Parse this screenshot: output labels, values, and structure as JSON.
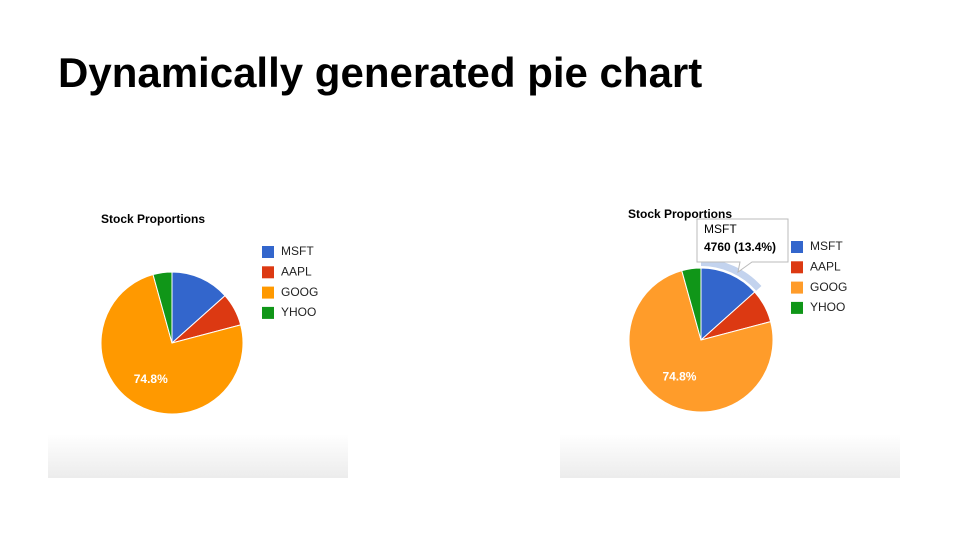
{
  "slide": {
    "title": "Dynamically generated pie chart"
  },
  "chart_data": [
    {
      "type": "pie",
      "title": "Stock Proportions",
      "categories": [
        "MSFT",
        "AAPL",
        "GOOG",
        "YHOO"
      ],
      "values": [
        13.4,
        7.5,
        74.8,
        4.3
      ],
      "value_labels": [
        null,
        null,
        "74.8%",
        null
      ],
      "colors": [
        "#3366cc",
        "#dc3912",
        "#ff9900",
        "#109618"
      ],
      "legend": "right"
    },
    {
      "type": "pie",
      "title": "Stock Proportions",
      "categories": [
        "MSFT",
        "AAPL",
        "GOOG",
        "YHOO"
      ],
      "values": [
        13.4,
        7.5,
        74.8,
        4.3
      ],
      "value_labels": [
        null,
        null,
        "74.8%",
        null
      ],
      "colors": [
        "#3366cc",
        "#dc3912",
        "#ff9c2a",
        "#109618"
      ],
      "legend": "right",
      "tooltip": {
        "title": "MSFT",
        "text": "4760 (13.4%)"
      }
    }
  ]
}
